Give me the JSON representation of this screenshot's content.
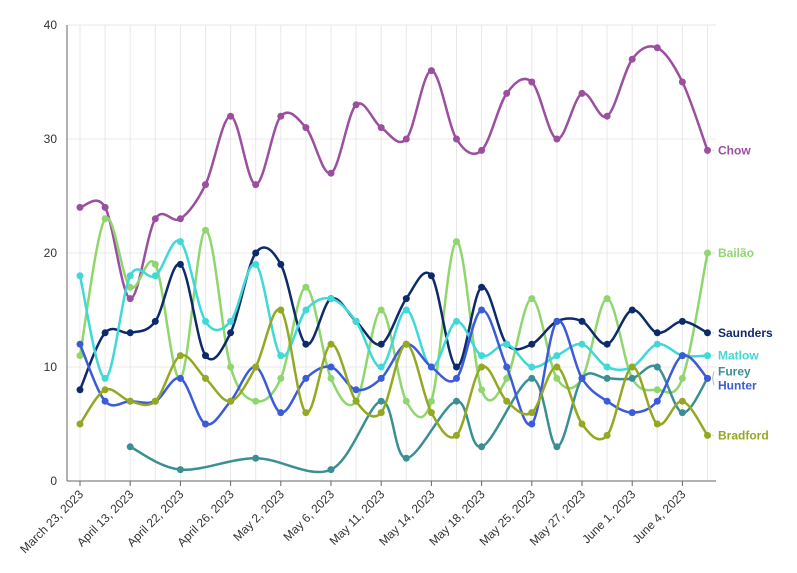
{
  "chart_data": {
    "type": "line",
    "title": "",
    "xlabel": "",
    "ylabel": "",
    "ylim": [
      0,
      40
    ],
    "yticks": [
      0,
      10,
      20,
      30,
      40
    ],
    "x_count": 26,
    "x_ticks": [
      {
        "index": 0,
        "label": "March 23, 2023"
      },
      {
        "index": 2,
        "label": "April 13, 2023"
      },
      {
        "index": 4,
        "label": "April 22, 2023"
      },
      {
        "index": 6,
        "label": "April 26, 2023"
      },
      {
        "index": 8,
        "label": "May 2, 2023"
      },
      {
        "index": 10,
        "label": "May 6, 2023"
      },
      {
        "index": 12,
        "label": "May 11, 2023"
      },
      {
        "index": 14,
        "label": "May 14, 2023"
      },
      {
        "index": 16,
        "label": "May 18, 2023"
      },
      {
        "index": 18,
        "label": "May 25, 2023"
      },
      {
        "index": 20,
        "label": "May 27, 2023"
      },
      {
        "index": 22,
        "label": "June 1, 2023"
      },
      {
        "index": 24,
        "label": "June 4, 2023"
      }
    ],
    "grid": true,
    "series": [
      {
        "name": "Chow",
        "color": "#9b4f9e",
        "values": [
          24,
          24,
          16,
          23,
          23,
          26,
          32,
          26,
          32,
          31,
          27,
          33,
          31,
          30,
          36,
          30,
          29,
          34,
          35,
          30,
          34,
          32,
          37,
          38,
          35,
          29
        ]
      },
      {
        "name": "Bailão",
        "color": "#8fd66f",
        "values": [
          11,
          23,
          17,
          19,
          9,
          22,
          10,
          7,
          9,
          17,
          9,
          7,
          15,
          7,
          7,
          21,
          8,
          9,
          16,
          9,
          9,
          16,
          9,
          8,
          9,
          20
        ]
      },
      {
        "name": "Saunders",
        "color": "#0d2a6b",
        "values": [
          8,
          13,
          13,
          14,
          19,
          11,
          13,
          20,
          19,
          12,
          16,
          14,
          12,
          16,
          18,
          10,
          17,
          12,
          12,
          14,
          14,
          12,
          15,
          13,
          14,
          13
        ]
      },
      {
        "name": "Matlow",
        "color": "#40d8d8",
        "values": [
          18,
          9,
          18,
          18,
          21,
          14,
          14,
          19,
          11,
          15,
          16,
          14,
          10,
          15,
          10,
          14,
          11,
          12,
          10,
          11,
          12,
          10,
          10,
          12,
          11,
          11
        ]
      },
      {
        "name": "Furey",
        "color": "#3a8f93",
        "values": [
          null,
          null,
          3,
          null,
          1,
          null,
          null,
          2,
          null,
          null,
          1,
          null,
          7,
          2,
          null,
          7,
          3,
          null,
          9,
          3,
          9,
          9,
          9,
          10,
          6,
          9
        ]
      },
      {
        "name": "Hunter",
        "color": "#3b5bd8",
        "values": [
          12,
          7,
          7,
          7,
          9,
          5,
          7,
          10,
          6,
          9,
          10,
          8,
          9,
          12,
          10,
          9,
          15,
          10,
          5,
          14,
          9,
          7,
          6,
          7,
          11,
          9
        ]
      },
      {
        "name": "Bradford",
        "color": "#94a824",
        "values": [
          5,
          8,
          7,
          7,
          11,
          9,
          7,
          10,
          15,
          6,
          12,
          7,
          6,
          12,
          6,
          4,
          10,
          7,
          6,
          10,
          5,
          4,
          10,
          5,
          7,
          4
        ]
      }
    ],
    "end_labels": [
      {
        "series": "Chow",
        "text": "Chow"
      },
      {
        "series": "Bailão",
        "text": "Bailão"
      },
      {
        "series": "Saunders",
        "text": "Saunders"
      },
      {
        "series": "Matlow",
        "text": "Matlow"
      },
      {
        "series": "Furey",
        "text": "Furey"
      },
      {
        "series": "Hunter",
        "text": "Hunter"
      },
      {
        "series": "Bradford",
        "text": "Bradford"
      }
    ]
  }
}
